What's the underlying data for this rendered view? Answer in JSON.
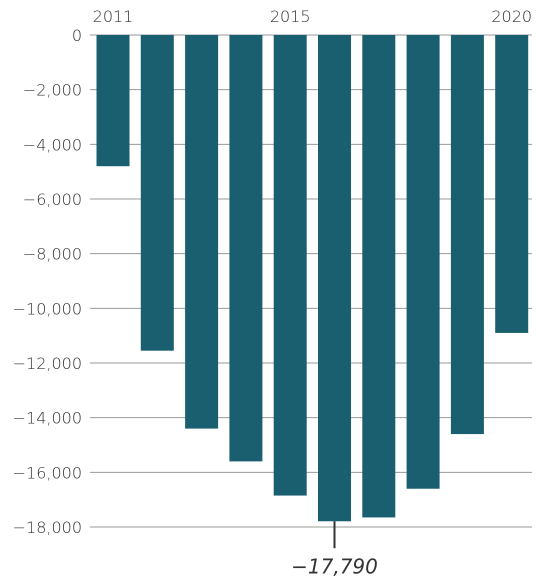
{
  "chart_data": {
    "type": "bar",
    "title": "",
    "xlabel": "",
    "ylabel": "",
    "categories": [
      "2011",
      "2012",
      "2013",
      "2014",
      "2015",
      "2016",
      "2017",
      "2018",
      "2019",
      "2020"
    ],
    "x_tick_labels_shown": [
      "2011",
      "2015",
      "2020"
    ],
    "values": [
      -4800,
      -11550,
      -14400,
      -15600,
      -16850,
      -17790,
      -17650,
      -16600,
      -14600,
      -10900
    ],
    "ylim": [
      -18000,
      0
    ],
    "y_ticks": [
      0,
      -2000,
      -4000,
      -6000,
      -8000,
      -10000,
      -12000,
      -14000,
      -16000,
      -18000
    ],
    "y_tick_labels": [
      "0",
      "−2,000",
      "−4,000",
      "−6,000",
      "−8,000",
      "−10,000",
      "−12,000",
      "−14,000",
      "−16,000",
      "−18,000"
    ],
    "grid": true,
    "bar_color": "#1a5f70",
    "annotation": {
      "category": "2016",
      "text": "−17,790"
    }
  }
}
